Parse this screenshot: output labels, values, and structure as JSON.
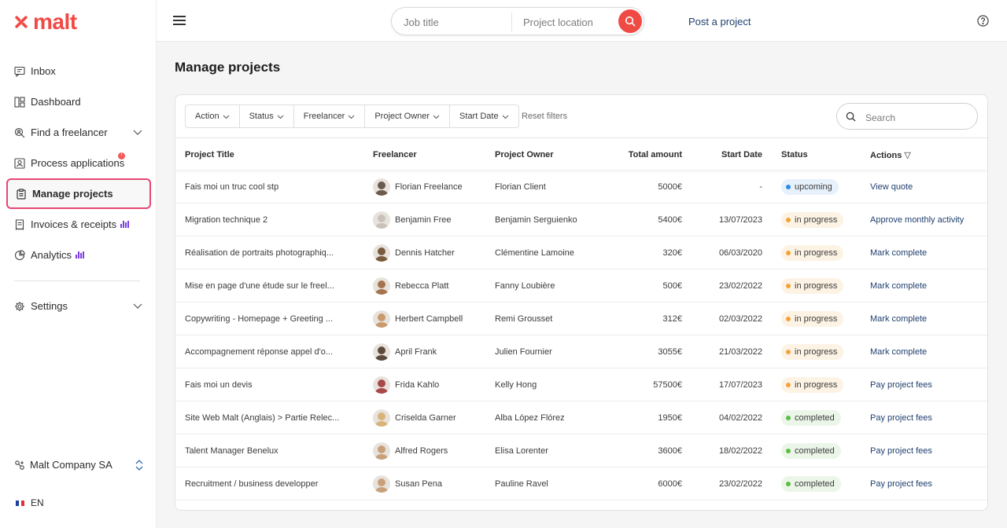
{
  "brand": {
    "name": "malt",
    "color": "#f04a45"
  },
  "sidebar": {
    "items": [
      {
        "label": "Inbox",
        "icon": "inbox-icon"
      },
      {
        "label": "Dashboard",
        "icon": "dashboard-icon"
      },
      {
        "label": "Find a freelancer",
        "icon": "search-user-icon",
        "expandable": true
      },
      {
        "label": "Process applications",
        "icon": "applications-icon",
        "badge": "!"
      },
      {
        "label": "Manage projects",
        "icon": "clipboard-icon",
        "active": true
      },
      {
        "label": "Invoices & receipts",
        "icon": "invoice-icon"
      },
      {
        "label": "Analytics",
        "icon": "analytics-icon"
      },
      {
        "label": "Settings",
        "icon": "gear-icon",
        "expandable": true
      }
    ],
    "company": "Malt Company SA",
    "language": "EN"
  },
  "header": {
    "job_placeholder": "Job title",
    "location_placeholder": "Project location",
    "post_project": "Post a project"
  },
  "main": {
    "title": "Manage projects",
    "filters": [
      "Action",
      "Status",
      "Freelancer",
      "Project Owner",
      "Start Date"
    ],
    "reset_filters": "Reset filters",
    "search_placeholder": "Search",
    "columns": {
      "title": "Project Title",
      "freelancer": "Freelancer",
      "owner": "Project Owner",
      "amount": "Total amount",
      "start": "Start Date",
      "status": "Status",
      "actions": "Actions ▽"
    },
    "rows": [
      {
        "title": "Fais moi un truc cool stp",
        "freelancer": "Florian Freelance",
        "owner": "Florian Client",
        "amount": "5000€",
        "start": "-",
        "status": "upcoming",
        "action": "View quote"
      },
      {
        "title": "Migration technique 2",
        "freelancer": "Benjamin Free",
        "owner": "Benjamin Serguienko",
        "amount": "5400€",
        "start": "13/07/2023",
        "status": "in progress",
        "action": "Approve monthly activity"
      },
      {
        "title": "Réalisation de portraits photographiq...",
        "freelancer": "Dennis Hatcher",
        "owner": "Clémentine Lamoine",
        "amount": "320€",
        "start": "06/03/2020",
        "status": "in progress",
        "action": "Mark complete"
      },
      {
        "title": "Mise en page d'une étude sur le freel...",
        "freelancer": "Rebecca Platt",
        "owner": "Fanny Loubière",
        "amount": "500€",
        "start": "23/02/2022",
        "status": "in progress",
        "action": "Mark complete"
      },
      {
        "title": "Copywriting - Homepage + Greeting ...",
        "freelancer": "Herbert Campbell",
        "owner": "Remi Grousset",
        "amount": "312€",
        "start": "02/03/2022",
        "status": "in progress",
        "action": "Mark complete"
      },
      {
        "title": "Accompagnement réponse appel d'o...",
        "freelancer": "April Frank",
        "owner": "Julien Fournier",
        "amount": "3055€",
        "start": "21/03/2022",
        "status": "in progress",
        "action": "Mark complete"
      },
      {
        "title": "Fais moi un devis",
        "freelancer": "Frida Kahlo",
        "owner": "Kelly Hong",
        "amount": "57500€",
        "start": "17/07/2023",
        "status": "in progress",
        "action": "Pay project fees"
      },
      {
        "title": "Site Web Malt (Anglais) > Partie Relec...",
        "freelancer": "Criselda Garner",
        "owner": "Alba López Flórez",
        "amount": "1950€",
        "start": "04/02/2022",
        "status": "completed",
        "action": "Pay project fees"
      },
      {
        "title": "Talent Manager Benelux",
        "freelancer": "Alfred Rogers",
        "owner": "Elisa Lorenter",
        "amount": "3600€",
        "start": "18/02/2022",
        "status": "completed",
        "action": "Pay project fees"
      },
      {
        "title": "Recruitment / business developper",
        "freelancer": "Susan Pena",
        "owner": "Pauline Ravel",
        "amount": "6000€",
        "start": "23/02/2022",
        "status": "completed",
        "action": "Pay project fees"
      }
    ]
  }
}
